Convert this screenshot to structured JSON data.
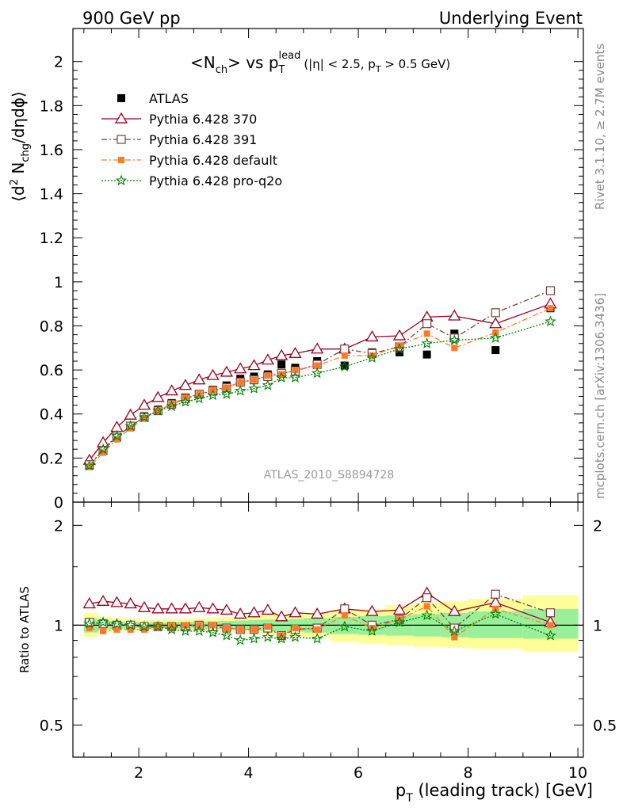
{
  "header": {
    "left": "900 GeV pp",
    "right": "Underlying Event"
  },
  "side_labels": {
    "rivet": "Rivet 3.1.10, ≥ 2.7M events",
    "mcplots": "mcplots.cern.ch [arXiv:1306.3436]"
  },
  "watermark": "ATLAS_2010_S8894728",
  "chart_data": [
    {
      "type": "scatter",
      "panel": "main",
      "title": "<N_ch> vs p_T^lead (|η| < 2.5, p_T > 0.5 GeV)",
      "title_parts": {
        "a": "<N",
        "a_sub": "ch",
        "b": "> vs p",
        "b_sub": "T",
        "b_sup": "lead",
        "c": "(|η| < 2.5, p",
        "c_sub": "T",
        "d": " > 0.5 GeV)"
      },
      "ylabel": "⟨d² N_chg/dηdϕ⟩",
      "ylabel_parts": {
        "a": "⟨d",
        "a_sup": "2",
        "b": " N",
        "b_sub": "chg",
        "c": "/dηdϕ⟩"
      },
      "xlim": [
        0.8,
        10.1
      ],
      "ylim": [
        0,
        2.15
      ],
      "yticks": [
        0,
        0.2,
        0.4,
        0.6,
        0.8,
        1,
        1.2,
        1.4,
        1.6,
        1.8,
        2
      ],
      "ytick_labels": [
        "0",
        "0.2",
        "0.4",
        "0.6",
        "0.8",
        "1",
        "1.2",
        "1.4",
        "1.6",
        "1.8",
        "2"
      ],
      "legend_position": "top-left",
      "series": [
        {
          "name": "ATLAS",
          "color": "#000000",
          "marker": "filled-square",
          "x": [
            1.1,
            1.35,
            1.6,
            1.85,
            2.1,
            2.35,
            2.6,
            2.85,
            3.1,
            3.35,
            3.6,
            3.85,
            4.1,
            4.35,
            4.6,
            4.85,
            5.25,
            5.75,
            6.25,
            6.75,
            7.25,
            7.75,
            8.5,
            9.5
          ],
          "y": [
            0.165,
            0.235,
            0.295,
            0.345,
            0.39,
            0.42,
            0.45,
            0.475,
            0.49,
            0.51,
            0.53,
            0.56,
            0.57,
            0.58,
            0.625,
            0.61,
            0.64,
            0.62,
            0.68,
            0.68,
            0.67,
            0.765,
            0.69,
            0.88
          ]
        },
        {
          "name": "Pythia 6.428 370",
          "color": "#990020",
          "marker": "open-triangle",
          "line": "solid",
          "x": [
            1.1,
            1.35,
            1.6,
            1.85,
            2.1,
            2.35,
            2.6,
            2.85,
            3.1,
            3.35,
            3.6,
            3.85,
            4.1,
            4.35,
            4.6,
            4.85,
            5.25,
            5.75,
            6.25,
            6.75,
            7.25,
            7.75,
            8.5,
            9.5
          ],
          "y": [
            0.19,
            0.27,
            0.34,
            0.395,
            0.44,
            0.475,
            0.505,
            0.53,
            0.555,
            0.575,
            0.59,
            0.605,
            0.62,
            0.645,
            0.665,
            0.675,
            0.695,
            0.695,
            0.75,
            0.755,
            0.84,
            0.845,
            0.81,
            0.9
          ]
        },
        {
          "name": "Pythia 6.428 391",
          "color": "#7a4040",
          "marker": "open-square",
          "line": "dash-dot",
          "x": [
            1.1,
            1.35,
            1.6,
            1.85,
            2.1,
            2.35,
            2.6,
            2.85,
            3.1,
            3.35,
            3.6,
            3.85,
            4.1,
            4.35,
            4.6,
            4.85,
            5.25,
            5.75,
            6.25,
            6.75,
            7.25,
            7.75,
            8.5,
            9.5
          ],
          "y": [
            0.17,
            0.235,
            0.295,
            0.345,
            0.385,
            0.415,
            0.445,
            0.47,
            0.49,
            0.505,
            0.52,
            0.545,
            0.555,
            0.57,
            0.585,
            0.595,
            0.625,
            0.695,
            0.675,
            0.705,
            0.81,
            0.745,
            0.86,
            0.96
          ]
        },
        {
          "name": "Pythia 6.428 default",
          "color": "#ff7a28",
          "marker": "filled-square-small",
          "line": "dash-dot",
          "x": [
            1.1,
            1.35,
            1.6,
            1.85,
            2.1,
            2.35,
            2.6,
            2.85,
            3.1,
            3.35,
            3.6,
            3.85,
            4.1,
            4.35,
            4.6,
            4.85,
            5.25,
            5.75,
            6.25,
            6.75,
            7.25,
            7.75,
            8.5,
            9.5
          ],
          "y": [
            0.16,
            0.225,
            0.285,
            0.335,
            0.38,
            0.415,
            0.445,
            0.475,
            0.49,
            0.51,
            0.52,
            0.545,
            0.555,
            0.575,
            0.58,
            0.6,
            0.62,
            0.665,
            0.665,
            0.71,
            0.765,
            0.7,
            0.77,
            0.88
          ]
        },
        {
          "name": "Pythia 6.428 pro-q2o",
          "color": "#008000",
          "marker": "open-star",
          "line": "dotted",
          "x": [
            1.1,
            1.35,
            1.6,
            1.85,
            2.1,
            2.35,
            2.6,
            2.85,
            3.1,
            3.35,
            3.6,
            3.85,
            4.1,
            4.35,
            4.6,
            4.85,
            5.25,
            5.75,
            6.25,
            6.75,
            7.25,
            7.75,
            8.5,
            9.5
          ],
          "y": [
            0.165,
            0.24,
            0.3,
            0.345,
            0.385,
            0.415,
            0.435,
            0.455,
            0.47,
            0.485,
            0.49,
            0.505,
            0.515,
            0.53,
            0.565,
            0.565,
            0.585,
            0.615,
            0.655,
            0.695,
            0.72,
            0.735,
            0.745,
            0.82
          ]
        }
      ]
    },
    {
      "type": "scatter",
      "panel": "ratio",
      "ylabel": "Ratio to ATLAS",
      "xlabel": "p_T (leading track) [GeV]",
      "xlabel_parts": {
        "a": "p",
        "a_sub": "T",
        "b": " (leading track) [GeV]"
      },
      "xlim": [
        0.8,
        10.1
      ],
      "ylim": [
        0.4,
        2.35
      ],
      "log_y": true,
      "xticks": [
        2,
        4,
        6,
        8,
        10
      ],
      "xtick_labels": [
        "2",
        "4",
        "6",
        "8",
        "10"
      ],
      "yticks": [
        0.5,
        1,
        2
      ],
      "ytick_labels": [
        "0.5",
        "1",
        "2"
      ],
      "bands": {
        "x_edges": [
          1.0,
          1.25,
          1.5,
          1.75,
          2.0,
          2.25,
          2.5,
          2.75,
          3.0,
          3.25,
          3.5,
          3.75,
          4.0,
          4.25,
          4.5,
          4.75,
          5.0,
          5.5,
          6.0,
          6.5,
          7.0,
          7.5,
          8.0,
          9.0,
          10.0
        ],
        "yellow_lo": [
          0.92,
          0.95,
          0.96,
          0.965,
          0.97,
          0.97,
          0.965,
          0.965,
          0.96,
          0.955,
          0.95,
          0.945,
          0.94,
          0.935,
          0.93,
          0.925,
          0.92,
          0.89,
          0.88,
          0.87,
          0.86,
          0.855,
          0.85,
          0.83
        ],
        "yellow_hi": [
          1.09,
          1.06,
          1.05,
          1.045,
          1.04,
          1.04,
          1.045,
          1.045,
          1.05,
          1.055,
          1.06,
          1.065,
          1.07,
          1.075,
          1.08,
          1.085,
          1.09,
          1.11,
          1.12,
          1.15,
          1.17,
          1.18,
          1.2,
          1.23
        ],
        "green_lo": [
          0.95,
          0.97,
          0.975,
          0.978,
          0.98,
          0.98,
          0.978,
          0.978,
          0.975,
          0.972,
          0.97,
          0.967,
          0.963,
          0.96,
          0.958,
          0.955,
          0.95,
          0.94,
          0.935,
          0.93,
          0.925,
          0.92,
          0.915,
          0.91
        ],
        "green_hi": [
          1.05,
          1.03,
          1.025,
          1.022,
          1.02,
          1.02,
          1.022,
          1.022,
          1.025,
          1.028,
          1.03,
          1.033,
          1.037,
          1.04,
          1.042,
          1.045,
          1.05,
          1.06,
          1.065,
          1.07,
          1.08,
          1.09,
          1.1,
          1.12
        ]
      },
      "series": [
        {
          "name": "Pythia 6.428 370",
          "color": "#990020",
          "marker": "open-triangle",
          "line": "solid",
          "x": [
            1.1,
            1.35,
            1.6,
            1.85,
            2.1,
            2.35,
            2.6,
            2.85,
            3.1,
            3.35,
            3.6,
            3.85,
            4.1,
            4.35,
            4.6,
            4.85,
            5.25,
            5.75,
            6.25,
            6.75,
            7.25,
            7.75,
            8.5,
            9.5
          ],
          "y": [
            1.16,
            1.18,
            1.17,
            1.16,
            1.13,
            1.12,
            1.12,
            1.12,
            1.13,
            1.12,
            1.11,
            1.08,
            1.09,
            1.11,
            1.06,
            1.09,
            1.08,
            1.12,
            1.1,
            1.11,
            1.25,
            1.1,
            1.17,
            1.02
          ]
        },
        {
          "name": "Pythia 6.428 391",
          "color": "#7a4040",
          "marker": "open-square",
          "line": "dash-dot",
          "x": [
            1.1,
            1.35,
            1.6,
            1.85,
            2.1,
            2.35,
            2.6,
            2.85,
            3.1,
            3.35,
            3.6,
            3.85,
            4.1,
            4.35,
            4.6,
            4.85,
            5.25,
            5.75,
            6.25,
            6.75,
            7.25,
            7.75,
            8.5,
            9.5
          ],
          "y": [
            1.02,
            1.01,
            1.0,
            1.0,
            0.99,
            0.99,
            0.99,
            0.99,
            1.0,
            0.99,
            0.98,
            0.97,
            0.97,
            0.98,
            0.93,
            0.97,
            0.98,
            1.12,
            1.0,
            1.04,
            1.21,
            0.98,
            1.24,
            1.09
          ]
        },
        {
          "name": "Pythia 6.428 default",
          "color": "#ff7a28",
          "marker": "filled-square-small",
          "line": "dash-dot",
          "x": [
            1.1,
            1.35,
            1.6,
            1.85,
            2.1,
            2.35,
            2.6,
            2.85,
            3.1,
            3.35,
            3.6,
            3.85,
            4.1,
            4.35,
            4.6,
            4.85,
            5.25,
            5.75,
            6.25,
            6.75,
            7.25,
            7.75,
            8.5,
            9.5
          ],
          "y": [
            0.98,
            0.96,
            0.97,
            0.97,
            0.97,
            0.99,
            0.99,
            1.0,
            1.0,
            1.0,
            0.98,
            0.97,
            0.97,
            0.99,
            0.93,
            0.98,
            0.97,
            1.07,
            0.98,
            1.04,
            1.14,
            0.92,
            1.12,
            1.0
          ]
        },
        {
          "name": "Pythia 6.428 pro-q2o",
          "color": "#008000",
          "marker": "open-star",
          "line": "dotted",
          "x": [
            1.1,
            1.35,
            1.6,
            1.85,
            2.1,
            2.35,
            2.6,
            2.85,
            3.1,
            3.35,
            3.6,
            3.85,
            4.1,
            4.35,
            4.6,
            4.85,
            5.25,
            5.75,
            6.25,
            6.75,
            7.25,
            7.75,
            8.5,
            9.5
          ],
          "y": [
            1.01,
            1.02,
            1.01,
            1.0,
            0.99,
            0.99,
            0.97,
            0.96,
            0.96,
            0.95,
            0.93,
            0.9,
            0.91,
            0.92,
            0.91,
            0.92,
            0.91,
            0.99,
            0.96,
            1.02,
            1.07,
            0.96,
            1.08,
            0.93
          ]
        }
      ]
    }
  ]
}
